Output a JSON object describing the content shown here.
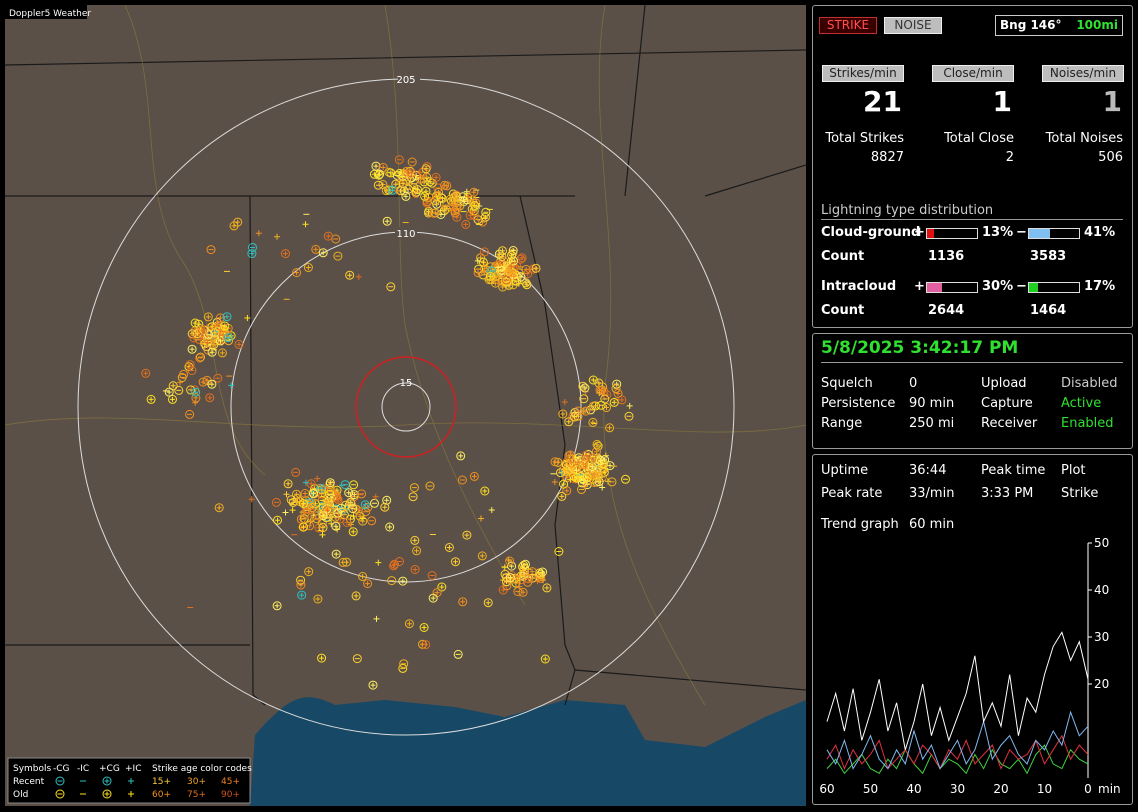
{
  "map": {
    "title": "Doppler5 Weather",
    "ring_labels": [
      "205",
      "110",
      "15"
    ],
    "legend": {
      "symbols_label": "Symbols",
      "headers": [
        "-CG",
        "-IC",
        "+CG",
        "+IC"
      ],
      "age_label": "Strike age color codes",
      "rows": [
        {
          "label": "Recent",
          "ages": [
            "15+",
            "30+",
            "45+"
          ]
        },
        {
          "label": "Old",
          "ages": [
            "60+",
            "75+",
            "90+"
          ]
        }
      ]
    }
  },
  "panel": {
    "buttons": {
      "strike": "STRIKE",
      "noise": "NOISE"
    },
    "bearing": {
      "label": "Bng 146°",
      "range": "100mi"
    },
    "rates": [
      {
        "label": "Strikes/min",
        "value": "21",
        "total_label": "Total Strikes",
        "total": "8827"
      },
      {
        "label": "Close/min",
        "value": "1",
        "total_label": "Total Close",
        "total": "2"
      },
      {
        "label": "Noises/min",
        "value": "1",
        "total_label": "Total Noises",
        "total": "506"
      }
    ],
    "distribution": {
      "title": "Lightning type distribution",
      "count_label": "Count",
      "plus": "+",
      "minus": "−",
      "rows": [
        {
          "label": "Cloud-ground",
          "percents": [
            13,
            41
          ],
          "percent_labels": [
            "13%",
            "41%"
          ],
          "counts": [
            "1136",
            "3583"
          ]
        },
        {
          "label": "Intracloud",
          "percents": [
            30,
            17
          ],
          "percent_labels": [
            "30%",
            "17%"
          ],
          "counts": [
            "2644",
            "1464"
          ]
        }
      ]
    },
    "status": {
      "datetime": "5/8/2025 3:42:17 PM",
      "rows": [
        [
          "Squelch",
          "0",
          "Upload",
          "Disabled"
        ],
        [
          "Persistence",
          "90 min",
          "Capture",
          "Active"
        ],
        [
          "Range",
          "250 mi",
          "Receiver",
          "Enabled"
        ]
      ]
    },
    "uptime": {
      "rows": [
        [
          "Uptime",
          "36:44",
          "Peak time",
          "Plot"
        ],
        [
          "Peak rate",
          "33/min",
          "3:33 PM",
          "Strike"
        ]
      ],
      "trend_label": "Trend graph",
      "trend_value": "60 min"
    }
  },
  "chart_data": {
    "type": "line",
    "x_unit": "min",
    "x": [
      60,
      58,
      56,
      54,
      52,
      50,
      48,
      46,
      44,
      42,
      40,
      38,
      36,
      34,
      32,
      30,
      28,
      26,
      24,
      22,
      20,
      18,
      16,
      14,
      12,
      10,
      8,
      6,
      4,
      2,
      0
    ],
    "xlim": [
      60,
      0
    ],
    "xticks": [
      60,
      50,
      40,
      30,
      20,
      10,
      0
    ],
    "ylim": [
      0,
      50
    ],
    "yticks": [
      20,
      30,
      40,
      50
    ],
    "series": [
      {
        "color": "#ffffff",
        "values": [
          12,
          18,
          10,
          19,
          8,
          14,
          21,
          10,
          16,
          6,
          12,
          20,
          9,
          15,
          8,
          13,
          18,
          26,
          12,
          16,
          11,
          22,
          9,
          17,
          14,
          22,
          28,
          31,
          25,
          29,
          21
        ]
      },
      {
        "color": "#80b8f0",
        "values": [
          6,
          3,
          8,
          2,
          5,
          9,
          4,
          2,
          6,
          3,
          10,
          4,
          7,
          2,
          5,
          8,
          3,
          6,
          12,
          4,
          7,
          9,
          5,
          3,
          8,
          6,
          10,
          7,
          14,
          9,
          11
        ]
      },
      {
        "color": "#e03040",
        "values": [
          4,
          7,
          2,
          6,
          3,
          5,
          8,
          2,
          4,
          6,
          3,
          7,
          5,
          2,
          6,
          4,
          8,
          3,
          5,
          7,
          2,
          6,
          4,
          5,
          8,
          3,
          6,
          9,
          4,
          7,
          5
        ]
      },
      {
        "color": "#40d040",
        "values": [
          2,
          4,
          1,
          3,
          5,
          2,
          1,
          4,
          2,
          6,
          3,
          1,
          5,
          2,
          4,
          3,
          1,
          5,
          2,
          6,
          3,
          2,
          4,
          1,
          5,
          7,
          3,
          2,
          6,
          4,
          3
        ]
      }
    ]
  }
}
